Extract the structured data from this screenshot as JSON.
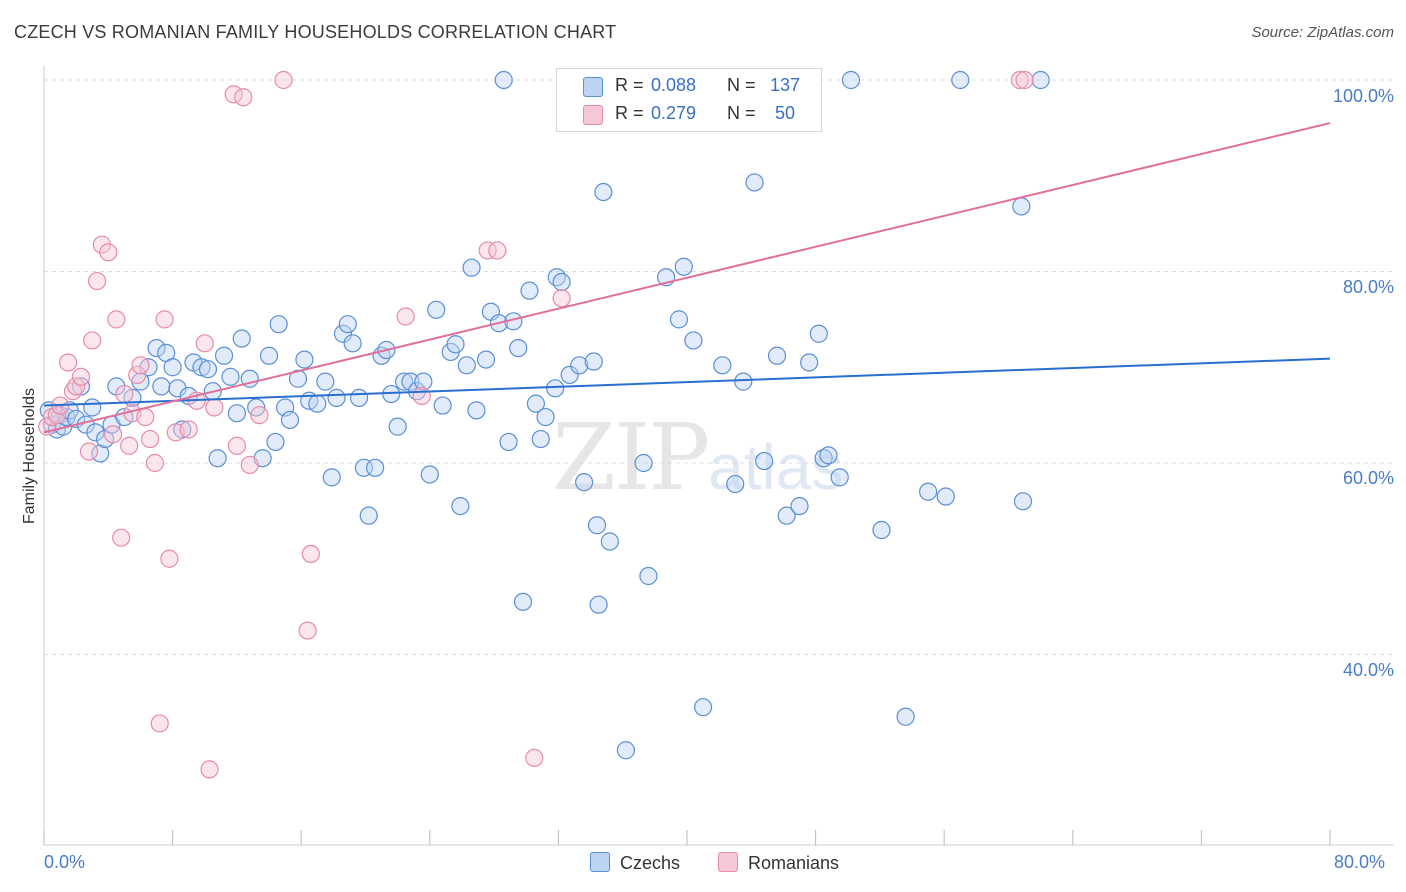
{
  "title": "CZECH VS ROMANIAN FAMILY HOUSEHOLDS CORRELATION CHART",
  "source": "Source: ZipAtlas.com",
  "watermark": {
    "zip": "ZIP",
    "atlas": "atlas"
  },
  "colors": {
    "czech": "#5b8fd6",
    "czech_fill": "#bcd3f2",
    "czech_line": "#2a6fd0",
    "romanian": "#e88aaa",
    "romanian_fill": "#f6c7d6",
    "romanian_line": "#e0709a",
    "tick": "#4a7cc7",
    "grid": "#dddddd"
  },
  "legend": {
    "czech": {
      "r_label": "R =",
      "r_value": "0.088",
      "n_label": "N =",
      "n_value": "137"
    },
    "romanian": {
      "r_label": "R =",
      "r_value": "0.279",
      "n_label": "N =",
      "n_value": "50"
    }
  },
  "bottom_legend": {
    "czech": "Czechs",
    "romanian": "Romanians"
  },
  "chart_data": {
    "type": "scatter",
    "title": "CZECH VS ROMANIAN FAMILY HOUSEHOLDS CORRELATION CHART",
    "xlabel": "",
    "ylabel": "Family Households",
    "xlim": [
      0,
      80
    ],
    "ylim": [
      20,
      102
    ],
    "x_tick_labels": [
      "0.0%",
      "80.0%"
    ],
    "y_ticks": [
      40,
      60,
      80,
      100
    ],
    "y_tick_labels": [
      "40.0%",
      "60.0%",
      "80.0%",
      "100.0%"
    ],
    "grid": true,
    "legend_position": "top-center",
    "series": [
      {
        "name": "Czechs",
        "r": 0.088,
        "n": 137,
        "trend": [
          [
            0,
            66.0
          ],
          [
            80,
            70.9
          ]
        ],
        "points": [
          [
            0.3,
            65.5
          ],
          [
            0.5,
            64.0
          ],
          [
            0.8,
            63.5
          ],
          [
            1.0,
            65.0
          ],
          [
            1.2,
            63.8
          ],
          [
            1.4,
            64.8
          ],
          [
            1.6,
            65.5
          ],
          [
            2.0,
            64.6
          ],
          [
            2.3,
            68.0
          ],
          [
            2.6,
            64.0
          ],
          [
            3.0,
            65.8
          ],
          [
            3.2,
            63.2
          ],
          [
            3.5,
            61.0
          ],
          [
            3.8,
            62.5
          ],
          [
            4.2,
            64.0
          ],
          [
            4.5,
            68.0
          ],
          [
            5.0,
            64.8
          ],
          [
            5.5,
            66.8
          ],
          [
            6.0,
            68.5
          ],
          [
            6.5,
            70.0
          ],
          [
            7.0,
            72.0
          ],
          [
            7.3,
            68.0
          ],
          [
            7.6,
            71.5
          ],
          [
            8.0,
            70.0
          ],
          [
            8.3,
            67.8
          ],
          [
            8.6,
            63.5
          ],
          [
            9.0,
            67.0
          ],
          [
            9.3,
            70.5
          ],
          [
            9.8,
            70.0
          ],
          [
            10.2,
            69.8
          ],
          [
            10.5,
            67.5
          ],
          [
            10.8,
            60.5
          ],
          [
            11.2,
            71.2
          ],
          [
            11.6,
            69.0
          ],
          [
            12.0,
            65.2
          ],
          [
            12.3,
            73.0
          ],
          [
            12.8,
            68.8
          ],
          [
            13.2,
            65.8
          ],
          [
            13.6,
            60.5
          ],
          [
            14.0,
            71.2
          ],
          [
            14.4,
            62.2
          ],
          [
            14.6,
            74.5
          ],
          [
            15.0,
            65.8
          ],
          [
            15.3,
            64.5
          ],
          [
            15.8,
            68.8
          ],
          [
            16.2,
            70.8
          ],
          [
            16.5,
            66.5
          ],
          [
            17.0,
            66.2
          ],
          [
            17.5,
            68.5
          ],
          [
            17.9,
            58.5
          ],
          [
            18.2,
            66.8
          ],
          [
            18.6,
            73.5
          ],
          [
            18.9,
            74.5
          ],
          [
            19.2,
            72.5
          ],
          [
            19.6,
            66.8
          ],
          [
            19.9,
            59.5
          ],
          [
            20.2,
            54.5
          ],
          [
            20.6,
            59.5
          ],
          [
            21.0,
            71.2
          ],
          [
            21.3,
            71.8
          ],
          [
            21.6,
            67.2
          ],
          [
            22.0,
            63.8
          ],
          [
            22.4,
            68.5
          ],
          [
            22.8,
            68.5
          ],
          [
            23.2,
            67.5
          ],
          [
            23.6,
            68.5
          ],
          [
            24.0,
            58.8
          ],
          [
            24.4,
            76.0
          ],
          [
            24.8,
            66.0
          ],
          [
            25.3,
            71.6
          ],
          [
            25.6,
            72.4
          ],
          [
            25.9,
            55.5
          ],
          [
            26.3,
            70.2
          ],
          [
            26.6,
            80.4
          ],
          [
            26.9,
            65.5
          ],
          [
            27.5,
            70.8
          ],
          [
            27.8,
            75.8
          ],
          [
            28.3,
            74.6
          ],
          [
            28.6,
            100.0
          ],
          [
            28.9,
            62.2
          ],
          [
            29.2,
            74.8
          ],
          [
            29.5,
            72.0
          ],
          [
            29.8,
            45.5
          ],
          [
            30.2,
            78.0
          ],
          [
            30.6,
            66.2
          ],
          [
            30.9,
            62.5
          ],
          [
            31.2,
            64.8
          ],
          [
            31.8,
            67.8
          ],
          [
            31.9,
            79.4
          ],
          [
            32.2,
            78.9
          ],
          [
            32.7,
            69.2
          ],
          [
            33.3,
            70.2
          ],
          [
            33.6,
            58.0
          ],
          [
            34.2,
            70.6
          ],
          [
            34.4,
            53.5
          ],
          [
            34.5,
            45.2
          ],
          [
            34.8,
            88.3
          ],
          [
            35.2,
            51.8
          ],
          [
            36.2,
            30.0
          ],
          [
            37.3,
            60.0
          ],
          [
            37.6,
            48.2
          ],
          [
            38.7,
            79.4
          ],
          [
            39.5,
            75.0
          ],
          [
            39.8,
            80.5
          ],
          [
            40.4,
            72.8
          ],
          [
            41.0,
            34.5
          ],
          [
            42.2,
            70.2
          ],
          [
            43.0,
            57.8
          ],
          [
            43.5,
            68.5
          ],
          [
            44.2,
            89.3
          ],
          [
            44.8,
            60.2
          ],
          [
            45.6,
            71.2
          ],
          [
            46.2,
            54.5
          ],
          [
            47.0,
            55.5
          ],
          [
            47.6,
            70.5
          ],
          [
            48.2,
            73.5
          ],
          [
            48.5,
            60.5
          ],
          [
            48.8,
            60.8
          ],
          [
            49.5,
            58.5
          ],
          [
            50.2,
            100.0
          ],
          [
            52.1,
            53.0
          ],
          [
            53.6,
            33.5
          ],
          [
            55.0,
            57.0
          ],
          [
            56.1,
            56.5
          ],
          [
            57.0,
            100.0
          ],
          [
            60.8,
            86.8
          ],
          [
            60.9,
            56.0
          ],
          [
            62.0,
            100.0
          ]
        ]
      },
      {
        "name": "Romanians",
        "r": 0.279,
        "n": 50,
        "trend": [
          [
            0,
            63.2
          ],
          [
            80,
            95.5
          ]
        ],
        "points": [
          [
            0.2,
            63.8
          ],
          [
            0.5,
            64.8
          ],
          [
            0.8,
            65.0
          ],
          [
            1.0,
            66.0
          ],
          [
            1.5,
            70.5
          ],
          [
            1.8,
            67.5
          ],
          [
            2.0,
            68.0
          ],
          [
            2.3,
            69.0
          ],
          [
            2.8,
            61.2
          ],
          [
            3.0,
            72.8
          ],
          [
            3.3,
            79.0
          ],
          [
            3.6,
            82.8
          ],
          [
            4.0,
            82.0
          ],
          [
            4.3,
            63.0
          ],
          [
            4.5,
            75.0
          ],
          [
            4.8,
            52.2
          ],
          [
            5.0,
            67.2
          ],
          [
            5.3,
            61.8
          ],
          [
            5.5,
            65.2
          ],
          [
            5.8,
            69.2
          ],
          [
            6.0,
            70.2
          ],
          [
            6.3,
            64.8
          ],
          [
            6.6,
            62.5
          ],
          [
            6.9,
            60.0
          ],
          [
            7.2,
            32.8
          ],
          [
            7.5,
            75.0
          ],
          [
            7.8,
            50.0
          ],
          [
            8.2,
            63.2
          ],
          [
            9.0,
            63.5
          ],
          [
            9.5,
            66.5
          ],
          [
            10.0,
            72.5
          ],
          [
            10.3,
            28.0
          ],
          [
            10.6,
            65.8
          ],
          [
            11.8,
            98.5
          ],
          [
            12.0,
            61.8
          ],
          [
            12.4,
            98.2
          ],
          [
            12.8,
            59.8
          ],
          [
            13.4,
            65.0
          ],
          [
            14.9,
            100.0
          ],
          [
            16.4,
            42.5
          ],
          [
            16.6,
            50.5
          ],
          [
            22.5,
            75.3
          ],
          [
            23.5,
            67.0
          ],
          [
            27.6,
            82.2
          ],
          [
            28.2,
            82.2
          ],
          [
            30.5,
            29.2
          ],
          [
            32.2,
            77.2
          ],
          [
            36.5,
            100.0
          ],
          [
            60.7,
            100.0
          ],
          [
            61.0,
            100.0
          ]
        ]
      }
    ]
  }
}
